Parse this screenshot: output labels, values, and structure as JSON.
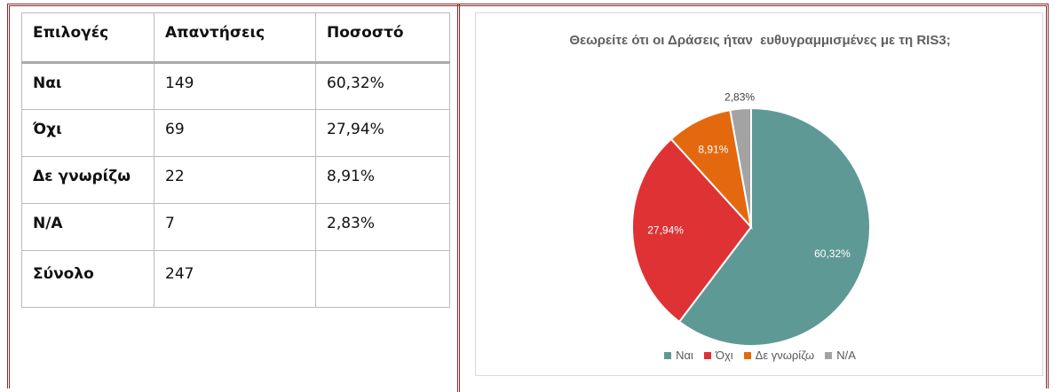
{
  "table": {
    "header": [
      "Επιλογές",
      "Απαντήσεις",
      "Ποσοστό"
    ],
    "rows": [
      [
        "Ναι",
        149,
        "60,32%"
      ],
      [
        "Όχι",
        69,
        "27,94%"
      ],
      [
        "Δε γνωρίζω",
        22,
        "8,91%"
      ],
      [
        "N/A",
        7,
        "2,83%"
      ],
      [
        "Σύνολο",
        247
      ]
    ]
  },
  "chart_data": {
    "type": "pie",
    "title": "Θεωρείτε ότι οι Δράσεις ήταν  ευθυγραμμισμένες με τη RIS3;",
    "categories": [
      "Ναι",
      "Όχι",
      "Δε γνωρίζω",
      "N/A"
    ],
    "values": [
      60.32,
      27.94,
      8.91,
      2.83
    ],
    "value_labels": [
      "60,32%",
      "27,94%",
      "8,91%",
      "2,83%"
    ],
    "colors": [
      "#5f9996",
      "#df3234",
      "#e4690e",
      "#a3a3a3"
    ],
    "legend": "bottom"
  }
}
